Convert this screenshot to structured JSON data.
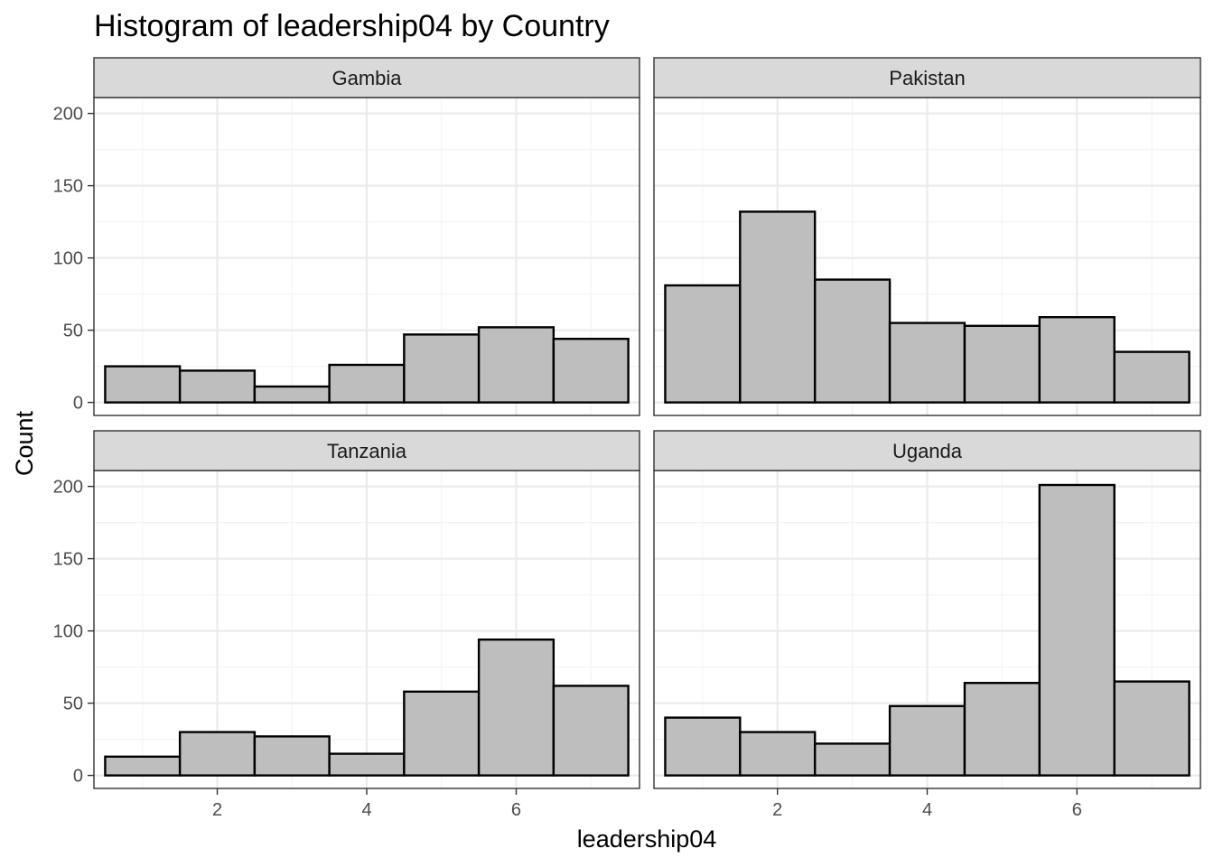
{
  "chart_data": {
    "type": "bar",
    "title": "Histogram of leadership04 by Country",
    "xlabel": "leadership04",
    "ylabel": "Count",
    "x": [
      1,
      2,
      3,
      4,
      5,
      6,
      7
    ],
    "binwidth": 1,
    "xlim": [
      0.35,
      7.65
    ],
    "ylim": [
      -9,
      211
    ],
    "x_ticks": [
      2,
      4,
      6
    ],
    "y_ticks": [
      0,
      50,
      100,
      150,
      200
    ],
    "grid": true,
    "panels": [
      {
        "name": "Gambia",
        "values": [
          25,
          22,
          11,
          26,
          47,
          52,
          44
        ]
      },
      {
        "name": "Pakistan",
        "values": [
          81,
          132,
          85,
          55,
          53,
          59,
          35
        ]
      },
      {
        "name": "Tanzania",
        "values": [
          13,
          30,
          27,
          15,
          58,
          94,
          62
        ]
      },
      {
        "name": "Uganda",
        "values": [
          40,
          30,
          22,
          48,
          64,
          201,
          65
        ]
      }
    ]
  },
  "colors": {
    "bar_fill": "#bebebe",
    "bar_outline": "#000000",
    "strip_fill": "#d9d9d9",
    "grid_major": "#ebebeb",
    "grid_minor": "#f4f4f4",
    "panel_border": "#333333"
  }
}
